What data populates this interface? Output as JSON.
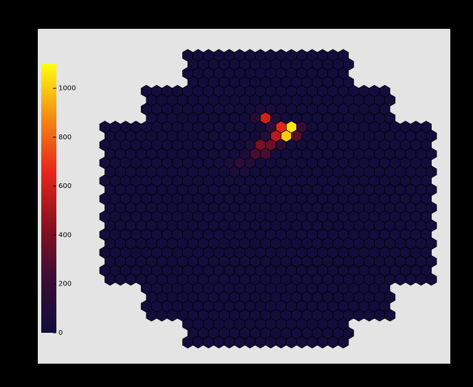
{
  "chart_data": {
    "type": "hexmap",
    "zlim": [
      0,
      1100
    ],
    "zticks": [
      0,
      200,
      400,
      600,
      800,
      1000
    ],
    "colormap": [
      "#100d3c",
      "#3a0c36",
      "#8a1020",
      "#e8261a",
      "#f48a12",
      "#ffff10"
    ],
    "values": [
      [
        null,
        null,
        null,
        null,
        null,
        null,
        null,
        null,
        15,
        15,
        15,
        15,
        15,
        15,
        15,
        15,
        15,
        15,
        15,
        15,
        15,
        15,
        15,
        15,
        null,
        null,
        null,
        null,
        null,
        null,
        null,
        null
      ],
      [
        null,
        null,
        null,
        null,
        null,
        null,
        null,
        null,
        15,
        15,
        15,
        15,
        15,
        15,
        15,
        15,
        15,
        15,
        15,
        15,
        15,
        15,
        15,
        15,
        null,
        null,
        null,
        null,
        null,
        null,
        null,
        null
      ],
      [
        null,
        null,
        null,
        null,
        null,
        null,
        null,
        null,
        15,
        15,
        15,
        15,
        15,
        15,
        15,
        15,
        15,
        15,
        15,
        15,
        15,
        15,
        15,
        15,
        null,
        null,
        null,
        null,
        null,
        null,
        null,
        null
      ],
      [
        null,
        null,
        null,
        null,
        null,
        null,
        null,
        null,
        15,
        15,
        15,
        15,
        15,
        15,
        15,
        15,
        15,
        15,
        15,
        15,
        15,
        15,
        15,
        15,
        null,
        null,
        null,
        null,
        null,
        null,
        null,
        null
      ],
      [
        null,
        null,
        null,
        null,
        15,
        15,
        15,
        15,
        15,
        15,
        15,
        15,
        15,
        15,
        15,
        15,
        15,
        15,
        15,
        15,
        15,
        15,
        15,
        15,
        15,
        15,
        15,
        15,
        null,
        null,
        null,
        null
      ],
      [
        null,
        null,
        null,
        null,
        15,
        15,
        15,
        15,
        15,
        15,
        15,
        15,
        15,
        15,
        15,
        15,
        15,
        15,
        15,
        15,
        15,
        15,
        15,
        15,
        15,
        15,
        15,
        15,
        null,
        null,
        null,
        null
      ],
      [
        null,
        null,
        null,
        null,
        15,
        15,
        15,
        15,
        15,
        15,
        15,
        15,
        15,
        15,
        15,
        60,
        50,
        15,
        15,
        15,
        15,
        15,
        15,
        15,
        15,
        15,
        15,
        15,
        null,
        null,
        null,
        null
      ],
      [
        null,
        null,
        null,
        null,
        15,
        15,
        15,
        15,
        15,
        15,
        15,
        15,
        15,
        15,
        120,
        600,
        80,
        15,
        15,
        15,
        15,
        15,
        15,
        15,
        15,
        15,
        15,
        15,
        null,
        null,
        null,
        null
      ],
      [
        15,
        15,
        15,
        15,
        15,
        15,
        15,
        15,
        15,
        15,
        15,
        15,
        15,
        15,
        15,
        15,
        150,
        650,
        1050,
        200,
        15,
        15,
        15,
        15,
        15,
        15,
        15,
        15,
        15,
        15,
        15,
        15
      ],
      [
        15,
        15,
        15,
        15,
        15,
        15,
        15,
        15,
        15,
        15,
        15,
        15,
        15,
        15,
        15,
        100,
        550,
        1000,
        300,
        15,
        15,
        15,
        15,
        15,
        15,
        15,
        15,
        15,
        15,
        15,
        15,
        15
      ],
      [
        15,
        15,
        15,
        15,
        15,
        15,
        15,
        15,
        15,
        15,
        15,
        15,
        15,
        15,
        80,
        400,
        350,
        150,
        15,
        15,
        15,
        15,
        15,
        15,
        15,
        15,
        15,
        15,
        15,
        15,
        15,
        15
      ],
      [
        15,
        15,
        15,
        15,
        15,
        15,
        15,
        15,
        15,
        15,
        15,
        15,
        15,
        60,
        250,
        250,
        15,
        15,
        15,
        15,
        15,
        15,
        15,
        15,
        15,
        15,
        15,
        15,
        15,
        15,
        15,
        15
      ],
      [
        15,
        15,
        15,
        15,
        15,
        15,
        15,
        15,
        15,
        15,
        15,
        15,
        50,
        150,
        100,
        15,
        15,
        15,
        15,
        15,
        15,
        15,
        15,
        15,
        15,
        15,
        15,
        15,
        15,
        15,
        15,
        15
      ],
      [
        15,
        15,
        15,
        15,
        15,
        15,
        15,
        15,
        15,
        15,
        15,
        15,
        60,
        50,
        15,
        15,
        15,
        15,
        15,
        15,
        15,
        15,
        15,
        15,
        15,
        15,
        15,
        15,
        15,
        15,
        15,
        15
      ],
      [
        15,
        15,
        15,
        15,
        15,
        15,
        15,
        15,
        15,
        15,
        15,
        15,
        15,
        15,
        15,
        15,
        15,
        15,
        15,
        15,
        15,
        15,
        15,
        15,
        15,
        15,
        15,
        15,
        15,
        15,
        15,
        15
      ],
      [
        15,
        15,
        15,
        15,
        15,
        15,
        15,
        15,
        15,
        15,
        15,
        15,
        15,
        15,
        15,
        15,
        15,
        15,
        15,
        15,
        15,
        15,
        15,
        15,
        15,
        15,
        15,
        15,
        15,
        15,
        15,
        15
      ],
      [
        15,
        15,
        15,
        15,
        15,
        15,
        15,
        15,
        15,
        15,
        15,
        15,
        15,
        15,
        15,
        15,
        15,
        15,
        15,
        15,
        15,
        15,
        15,
        15,
        15,
        15,
        15,
        15,
        15,
        15,
        15,
        15
      ],
      [
        15,
        15,
        15,
        15,
        15,
        15,
        15,
        15,
        15,
        15,
        15,
        15,
        15,
        15,
        15,
        15,
        15,
        15,
        15,
        15,
        15,
        15,
        15,
        15,
        15,
        15,
        15,
        15,
        15,
        15,
        15,
        15
      ],
      [
        15,
        15,
        15,
        15,
        15,
        15,
        15,
        15,
        15,
        15,
        15,
        15,
        15,
        15,
        15,
        15,
        15,
        15,
        15,
        15,
        15,
        15,
        15,
        15,
        15,
        15,
        15,
        15,
        15,
        15,
        15,
        15
      ],
      [
        15,
        15,
        15,
        15,
        15,
        15,
        15,
        15,
        15,
        15,
        15,
        15,
        15,
        15,
        15,
        15,
        15,
        15,
        15,
        15,
        15,
        15,
        15,
        15,
        15,
        15,
        15,
        15,
        15,
        15,
        15,
        15
      ],
      [
        15,
        15,
        15,
        15,
        15,
        15,
        15,
        15,
        15,
        15,
        15,
        15,
        15,
        15,
        15,
        15,
        15,
        15,
        15,
        15,
        15,
        15,
        15,
        15,
        15,
        15,
        15,
        15,
        15,
        15,
        15,
        15
      ],
      [
        15,
        15,
        15,
        15,
        15,
        15,
        15,
        15,
        15,
        15,
        15,
        15,
        15,
        15,
        15,
        15,
        15,
        15,
        15,
        15,
        15,
        15,
        15,
        15,
        15,
        15,
        15,
        15,
        15,
        15,
        15,
        15
      ],
      [
        15,
        15,
        15,
        15,
        15,
        15,
        15,
        15,
        15,
        15,
        15,
        15,
        15,
        15,
        15,
        15,
        15,
        15,
        15,
        15,
        15,
        15,
        15,
        15,
        15,
        15,
        15,
        15,
        15,
        15,
        15,
        15
      ],
      [
        15,
        15,
        15,
        15,
        15,
        15,
        15,
        15,
        15,
        15,
        15,
        15,
        15,
        15,
        15,
        15,
        15,
        15,
        15,
        15,
        15,
        15,
        15,
        15,
        15,
        15,
        15,
        15,
        15,
        15,
        15,
        15
      ],
      [
        15,
        15,
        15,
        15,
        15,
        15,
        15,
        15,
        15,
        15,
        15,
        15,
        15,
        15,
        15,
        15,
        15,
        15,
        15,
        15,
        15,
        15,
        15,
        15,
        15,
        15,
        15,
        15,
        15,
        15,
        15,
        15
      ],
      [
        15,
        15,
        15,
        15,
        15,
        15,
        15,
        15,
        15,
        15,
        15,
        15,
        15,
        15,
        15,
        15,
        15,
        15,
        15,
        15,
        15,
        15,
        15,
        15,
        15,
        15,
        15,
        15,
        15,
        15,
        15,
        15
      ],
      [
        null,
        null,
        null,
        null,
        15,
        15,
        15,
        15,
        15,
        15,
        15,
        15,
        15,
        15,
        15,
        15,
        15,
        15,
        15,
        15,
        15,
        15,
        15,
        15,
        15,
        15,
        15,
        15,
        null,
        null,
        null,
        null
      ],
      [
        null,
        null,
        null,
        null,
        15,
        15,
        15,
        15,
        15,
        15,
        15,
        15,
        15,
        15,
        15,
        15,
        15,
        15,
        15,
        15,
        15,
        15,
        15,
        15,
        15,
        15,
        15,
        15,
        null,
        null,
        null,
        null
      ],
      [
        null,
        null,
        null,
        null,
        15,
        15,
        15,
        15,
        15,
        15,
        15,
        15,
        15,
        15,
        15,
        15,
        15,
        15,
        15,
        15,
        15,
        15,
        15,
        15,
        15,
        15,
        15,
        15,
        null,
        null,
        null,
        null
      ],
      [
        null,
        null,
        null,
        null,
        15,
        15,
        15,
        15,
        15,
        15,
        15,
        15,
        15,
        15,
        15,
        15,
        15,
        15,
        15,
        15,
        15,
        15,
        15,
        15,
        15,
        15,
        15,
        15,
        null,
        null,
        null,
        null
      ],
      [
        null,
        null,
        null,
        null,
        null,
        null,
        null,
        null,
        15,
        15,
        15,
        15,
        15,
        15,
        15,
        15,
        15,
        15,
        15,
        15,
        15,
        15,
        15,
        15,
        null,
        null,
        null,
        null,
        null,
        null,
        null,
        null
      ],
      [
        null,
        null,
        null,
        null,
        null,
        null,
        null,
        null,
        15,
        15,
        15,
        15,
        15,
        15,
        15,
        15,
        15,
        15,
        15,
        15,
        15,
        15,
        15,
        15,
        null,
        null,
        null,
        null,
        null,
        null,
        null,
        null
      ],
      [
        null,
        null,
        null,
        null,
        null,
        null,
        null,
        null,
        15,
        15,
        15,
        15,
        15,
        15,
        15,
        15,
        15,
        15,
        15,
        15,
        15,
        15,
        15,
        15,
        null,
        null,
        null,
        null,
        null,
        null,
        null,
        null
      ]
    ]
  }
}
